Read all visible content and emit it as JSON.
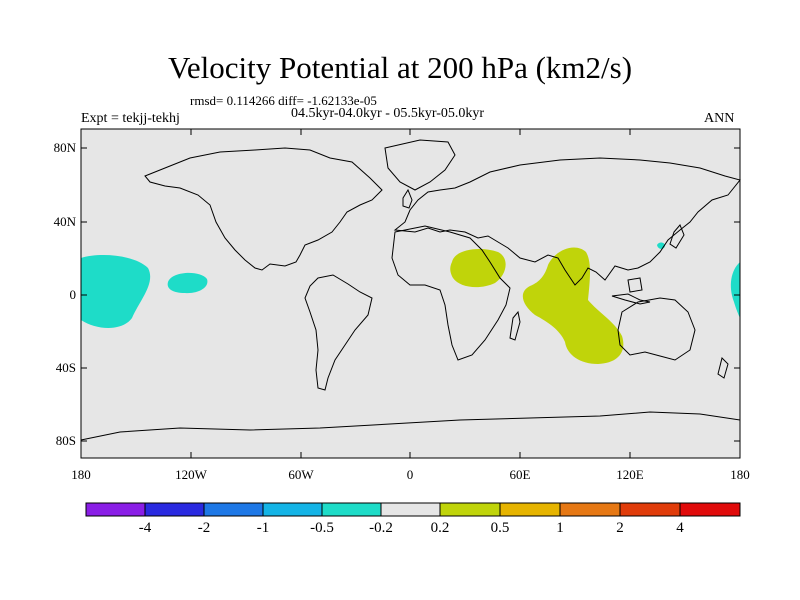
{
  "title": "Velocity Potential at 200 hPa (km2/s)",
  "stats": "rmsd= 0.114266 diff= -1.62133e-05",
  "period": "04.5kyr-04.0kyr - 05.5kyr-05.0kyr",
  "expt": "Expt = tekjj-tekhj",
  "season": "ANN",
  "axes": {
    "y_labels": [
      "80N",
      "40N",
      "0",
      "40S",
      "80S"
    ],
    "x_labels": [
      "180",
      "120W",
      "60W",
      "0",
      "60E",
      "120E",
      "180"
    ]
  },
  "colorbar": {
    "colors": [
      "#8a1ee6",
      "#2a2ae0",
      "#1e78e6",
      "#14b4e6",
      "#1edcc8",
      "#e6e6e6",
      "#c0d40a",
      "#e6b400",
      "#e67814",
      "#e03c0a",
      "#e00a0a"
    ],
    "labels": [
      "-4",
      "-2",
      "-1",
      "-0.5",
      "-0.2",
      "0.2",
      "0.5",
      "1",
      "2",
      "4"
    ]
  },
  "colors": {
    "background": "#e6e6e6",
    "negative_anomaly": "#1edcc8",
    "positive_anomaly": "#c0d40a",
    "coastline": "#000000"
  }
}
